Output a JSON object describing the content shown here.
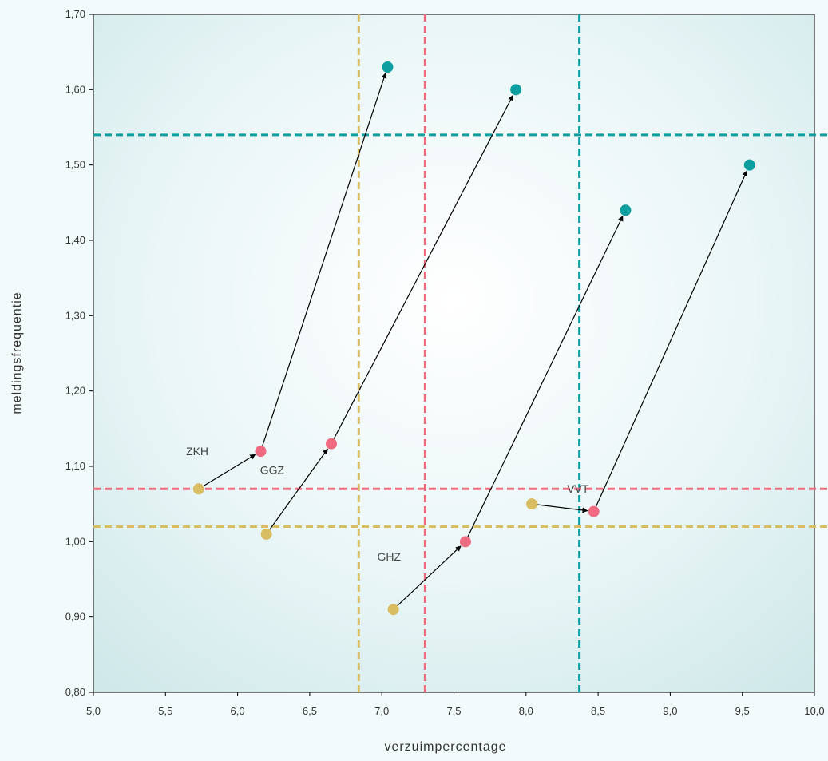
{
  "chart_data": {
    "type": "scatter",
    "xlabel": "verzuimpercentage",
    "ylabel": "meldingsfrequentie",
    "xlim": [
      5.0,
      10.0
    ],
    "ylim": [
      0.8,
      1.7
    ],
    "xticks": [
      "5,0",
      "5,5",
      "6,0",
      "6,5",
      "7,0",
      "7,5",
      "8,0",
      "8,5",
      "9,0",
      "9,5",
      "10,0"
    ],
    "xtick_values": [
      5.0,
      5.5,
      6.0,
      6.5,
      7.0,
      7.5,
      8.0,
      8.5,
      9.0,
      9.5,
      10.0
    ],
    "yticks": [
      "0,80",
      "0,90",
      "1,00",
      "1,10",
      "1,20",
      "1,30",
      "1,40",
      "1,50",
      "1,60",
      "1,70"
    ],
    "ytick_values": [
      0.8,
      0.9,
      1.0,
      1.1,
      1.2,
      1.3,
      1.4,
      1.5,
      1.6,
      1.7
    ],
    "grid": false,
    "series": [
      {
        "color": "#d9bd62",
        "points": [
          [
            5.73,
            1.07
          ],
          [
            6.2,
            1.01
          ],
          [
            7.08,
            0.91
          ],
          [
            8.04,
            1.05
          ]
        ]
      },
      {
        "color": "#ef6b80",
        "points": [
          [
            6.16,
            1.12
          ],
          [
            6.65,
            1.13
          ],
          [
            7.58,
            1.0
          ],
          [
            8.47,
            1.04
          ]
        ]
      },
      {
        "color": "#0e9ea0",
        "points": [
          [
            7.04,
            1.63
          ],
          [
            7.93,
            1.6
          ],
          [
            8.69,
            1.44
          ],
          [
            9.55,
            1.5
          ]
        ]
      }
    ],
    "arrows": [
      {
        "from": [
          5.73,
          1.07
        ],
        "to": [
          6.16,
          1.12
        ]
      },
      {
        "from": [
          6.16,
          1.12
        ],
        "to": [
          7.04,
          1.63
        ]
      },
      {
        "from": [
          6.2,
          1.01
        ],
        "to": [
          6.65,
          1.13
        ]
      },
      {
        "from": [
          6.65,
          1.13
        ],
        "to": [
          7.93,
          1.6
        ]
      },
      {
        "from": [
          7.08,
          0.91
        ],
        "to": [
          7.58,
          1.0
        ]
      },
      {
        "from": [
          7.58,
          1.0
        ],
        "to": [
          8.69,
          1.44
        ]
      },
      {
        "from": [
          8.04,
          1.05
        ],
        "to": [
          8.47,
          1.04
        ]
      },
      {
        "from": [
          8.47,
          1.04
        ],
        "to": [
          9.55,
          1.5
        ]
      }
    ],
    "reference_lines": [
      {
        "orientation": "vertical",
        "value": 6.84,
        "color": "#d9bd62"
      },
      {
        "orientation": "vertical",
        "value": 7.3,
        "color": "#ef6b80"
      },
      {
        "orientation": "vertical",
        "value": 8.37,
        "color": "#0e9ea0"
      },
      {
        "orientation": "horizontal",
        "value": 1.54,
        "color": "#0e9ea0"
      },
      {
        "orientation": "horizontal",
        "value": 1.07,
        "color": "#ef6b80"
      },
      {
        "orientation": "horizontal",
        "value": 1.02,
        "color": "#d9bd62"
      }
    ],
    "annotations": [
      {
        "text": "ZKH",
        "x": 5.72,
        "y": 1.115
      },
      {
        "text": "GGZ",
        "x": 6.24,
        "y": 1.09
      },
      {
        "text": "GHZ",
        "x": 7.05,
        "y": 0.975
      },
      {
        "text": "VVT",
        "x": 8.36,
        "y": 1.065
      }
    ]
  }
}
